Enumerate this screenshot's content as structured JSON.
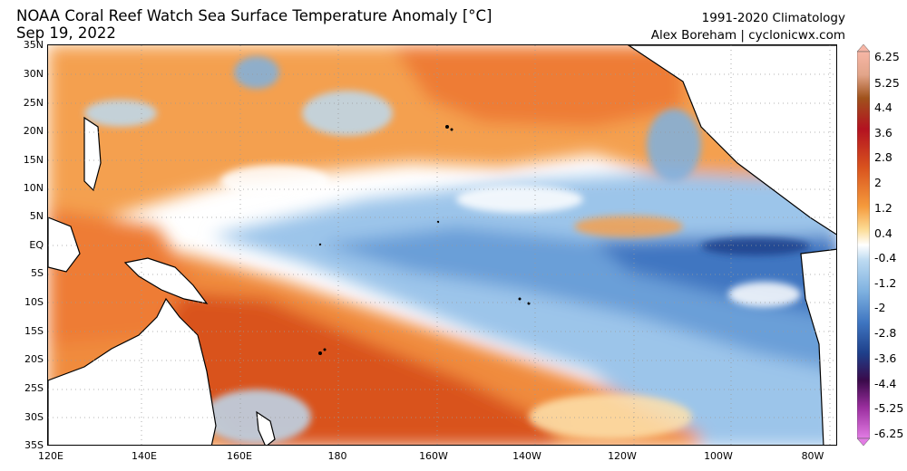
{
  "header": {
    "title_line1": "NOAA Coral Reef Watch Sea Surface Temperature Anomaly [°C]",
    "title_line2": "Sep 19, 2022",
    "climatology": "1991-2020 Climatology",
    "author": "Alex Boreham | cyclonicwx.com"
  },
  "map": {
    "lat_labels": [
      "35N",
      "30N",
      "25N",
      "20N",
      "15N",
      "10N",
      "5N",
      "EQ",
      "5S",
      "10S",
      "15S",
      "20S",
      "25S",
      "30S",
      "35S"
    ],
    "lon_labels": [
      "120E",
      "140E",
      "160E",
      "180",
      "160W",
      "140W",
      "120W",
      "100W",
      "80W"
    ],
    "colors": {
      "warm_strong": "#d9531e",
      "warm": "#f08b3c",
      "warm_light": "#f8b870",
      "pale": "#fde2ad",
      "neutral": "#ffffff",
      "cool_light": "#bcdaf1",
      "cool": "#7eb1e0",
      "cool_strong": "#3f76c1",
      "cool_deep": "#1e3f8a",
      "land_outline": "#000000",
      "grid": "#9a9a9a"
    }
  },
  "colorbar": {
    "labels": [
      "6.25",
      "5.25",
      "4.4",
      "3.6",
      "2.8",
      "2",
      "1.2",
      "0.4",
      "-0.4",
      "-1.2",
      "-2",
      "-2.8",
      "-3.6",
      "-4.4",
      "-5.25",
      "-6.25"
    ]
  }
}
